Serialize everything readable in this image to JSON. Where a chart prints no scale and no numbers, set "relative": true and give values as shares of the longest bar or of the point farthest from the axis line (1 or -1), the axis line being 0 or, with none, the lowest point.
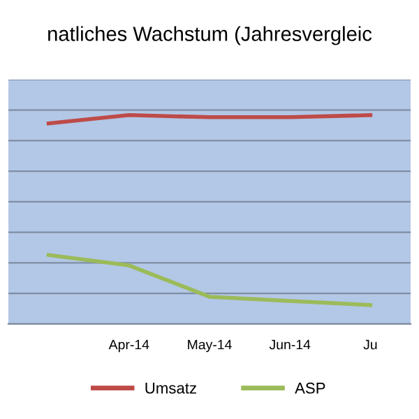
{
  "chart_data": {
    "type": "line",
    "title": "natliches Wachstum (Jahresvergleic",
    "relative": true,
    "categories": [
      null,
      "Apr-14",
      "May-14",
      "Jun-14",
      "Ju"
    ],
    "series": [
      {
        "name": "Umsatz",
        "color": "#be4b48",
        "values": [
          0.96,
          1.0,
          0.99,
          0.99,
          1.0
        ]
      },
      {
        "name": "ASP",
        "color": "#9bbb59",
        "values": [
          0.33,
          0.28,
          0.13,
          0.11,
          0.09
        ]
      }
    ],
    "grid": "y",
    "legend": "bottom",
    "marker": "none",
    "line_style": "solid"
  }
}
